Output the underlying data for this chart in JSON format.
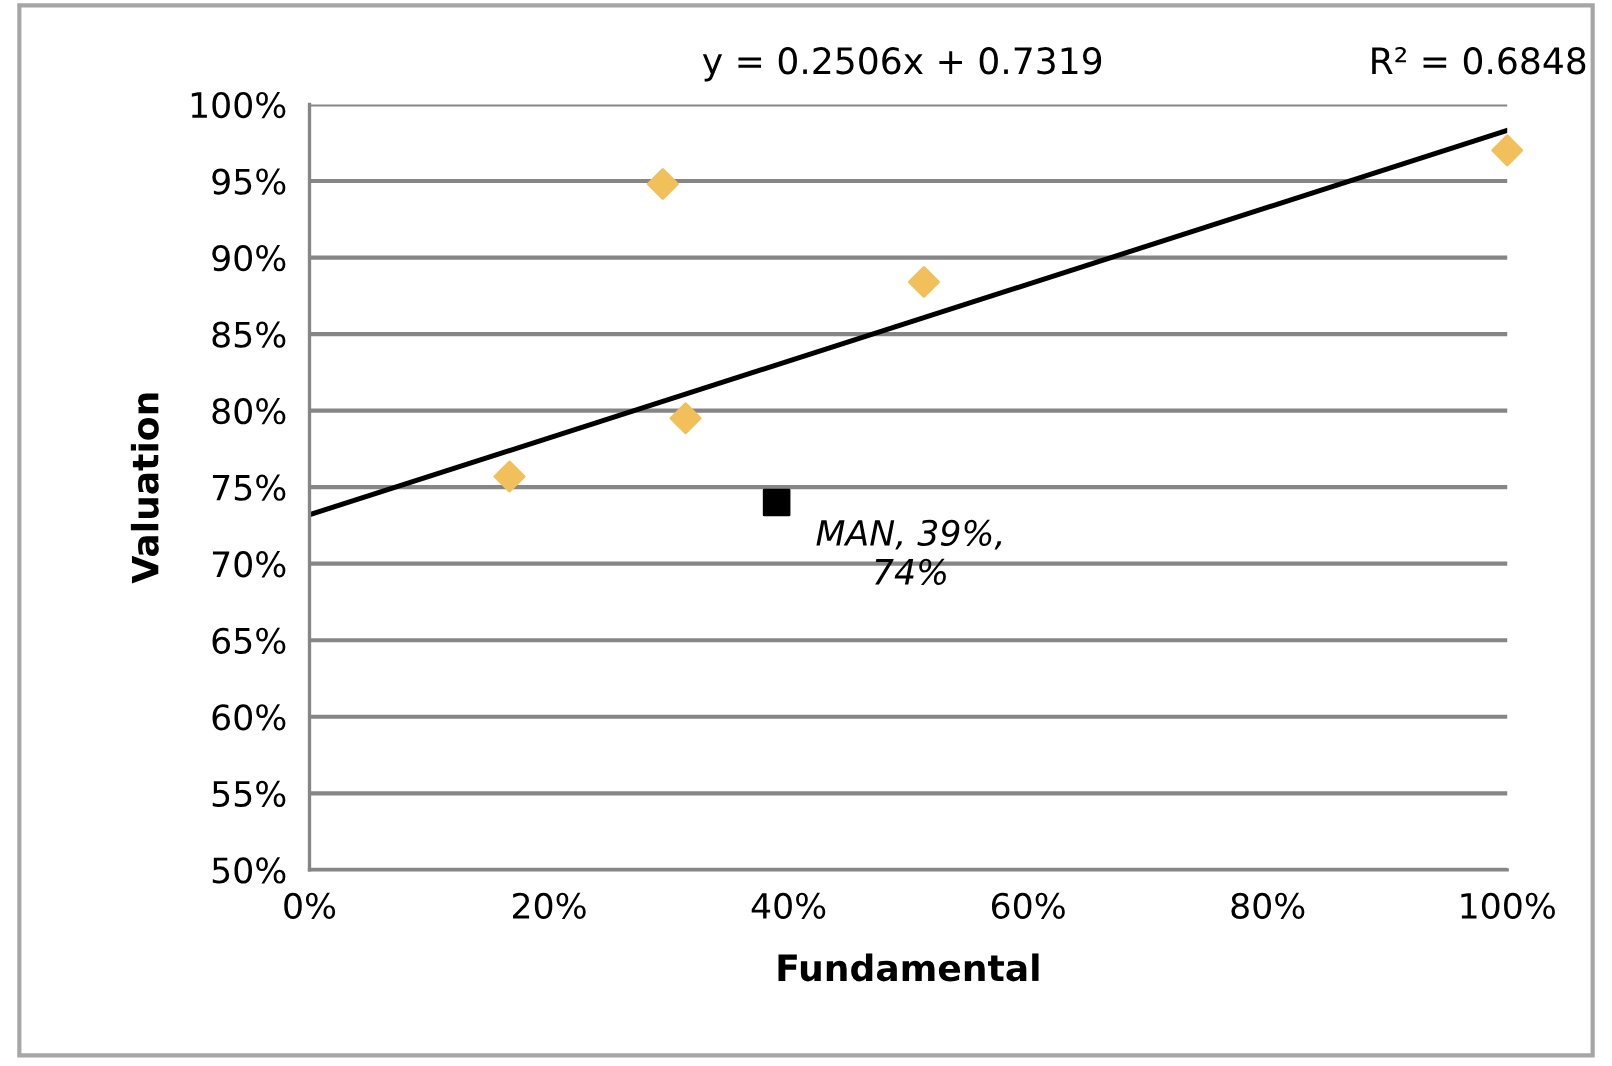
{
  "chart_data": {
    "type": "scatter",
    "xlabel": "Fundamental",
    "ylabel": "Valuation",
    "annotations": [
      "y = 0.2506x + 0.7319",
      "R² = 0.6848",
      {
        "text": "MAN, 39%,\n74%",
        "x": 39,
        "y": 74
      }
    ],
    "series": [
      {
        "color": "#f2c05a",
        "marker": "diamond",
        "x": [
          16.7,
          29.5,
          31.4,
          51.3,
          100
        ],
        "values": [
          75.7,
          94.8,
          79.5,
          88.4,
          97.0
        ]
      },
      {
        "color": "#000000",
        "marker": "square",
        "x": [
          39
        ],
        "values": [
          74
        ]
      },
      {
        "type": "line",
        "color": "#000000",
        "marker": "none",
        "x": [
          0,
          100
        ],
        "values": [
          73.2,
          98.3
        ]
      }
    ],
    "xlim": [
      0,
      100
    ],
    "ylim": [
      50,
      100
    ],
    "xticks": [
      {
        "value": 0,
        "label": "0%"
      },
      {
        "value": 20,
        "label": "20%"
      },
      {
        "value": 40,
        "label": "40%"
      },
      {
        "value": 60,
        "label": "60%"
      },
      {
        "value": 80,
        "label": "80%"
      },
      {
        "value": 100,
        "label": "100%"
      }
    ],
    "yticks": [
      {
        "value": 50,
        "label": "50%"
      },
      {
        "value": 55,
        "label": "55%"
      },
      {
        "value": 60,
        "label": "60%"
      },
      {
        "value": 65,
        "label": "65%"
      },
      {
        "value": 70,
        "label": "70%"
      },
      {
        "value": 75,
        "label": "75%"
      },
      {
        "value": 80,
        "label": "80%"
      },
      {
        "value": 85,
        "label": "85%"
      },
      {
        "value": 90,
        "label": "90%"
      },
      {
        "value": 95,
        "label": "95%"
      },
      {
        "value": 100,
        "label": "100%"
      }
    ],
    "grid": "y",
    "legend": false
  }
}
